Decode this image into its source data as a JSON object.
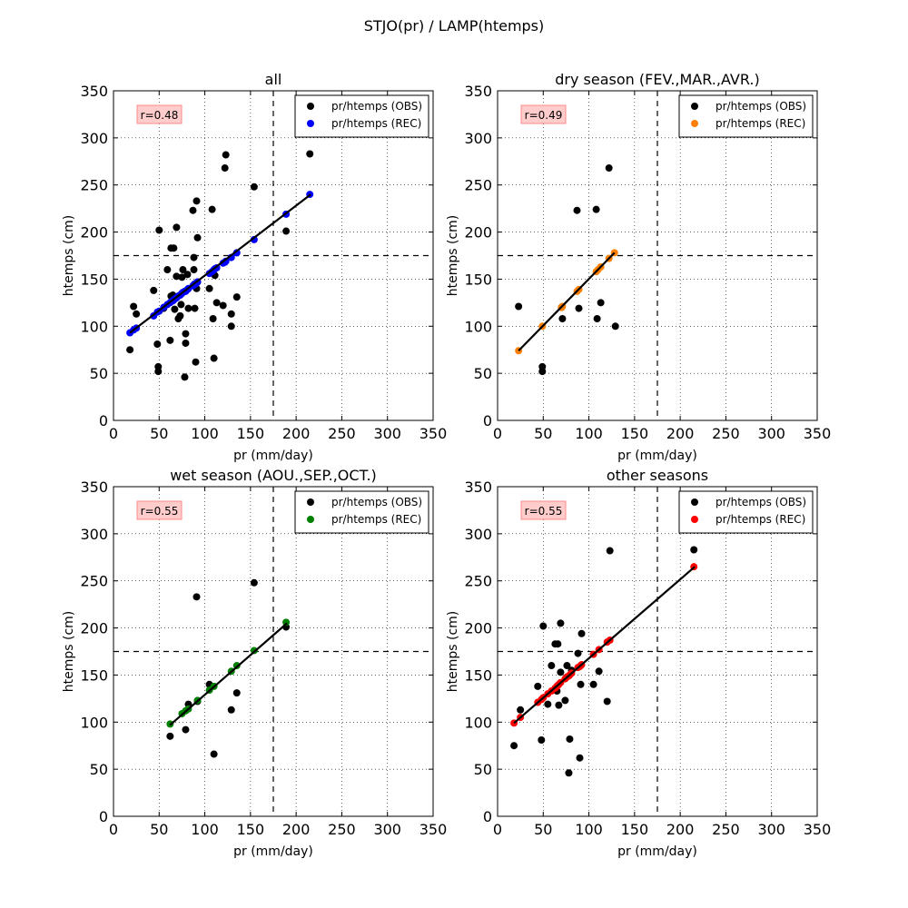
{
  "figure": {
    "suptitle": "STJO(pr) / LAMP(htemps)"
  },
  "chart_data": [
    {
      "type": "scatter",
      "title": "all",
      "xlabel": "pr (mm/day)",
      "ylabel": "htemps (cm)",
      "xlim": [
        0,
        350
      ],
      "ylim": [
        0,
        350
      ],
      "xticks": [
        0,
        50,
        100,
        150,
        200,
        250,
        300,
        350
      ],
      "yticks": [
        0,
        50,
        100,
        150,
        200,
        250,
        300,
        350
      ],
      "grid": true,
      "legend_position": "top-right",
      "annotation": "r=0.48",
      "thresholds": {
        "x": 175,
        "y": 175
      },
      "fit_line": {
        "x": [
          18,
          216
        ],
        "y": [
          93,
          240
        ]
      },
      "series": [
        {
          "name": "pr/htemps (OBS)",
          "color": "#000000",
          "points": [
            [
              18,
              75
            ],
            [
              22,
              121
            ],
            [
              25,
              113
            ],
            [
              44,
              138
            ],
            [
              48,
              81
            ],
            [
              49,
              57
            ],
            [
              49,
              52
            ],
            [
              50,
              202
            ],
            [
              55,
              119
            ],
            [
              59,
              160
            ],
            [
              62,
              85
            ],
            [
              63,
              183
            ],
            [
              63,
              132
            ],
            [
              65,
              133
            ],
            [
              66,
              183
            ],
            [
              67,
              118
            ],
            [
              69,
              153
            ],
            [
              69,
              205
            ],
            [
              71,
              108
            ],
            [
              73,
              111
            ],
            [
              74,
              123
            ],
            [
              75,
              152
            ],
            [
              76,
              160
            ],
            [
              78,
              46
            ],
            [
              79,
              92
            ],
            [
              79,
              82
            ],
            [
              81,
              155
            ],
            [
              82,
              119
            ],
            [
              87,
              223
            ],
            [
              88,
              160
            ],
            [
              88,
              173
            ],
            [
              89,
              119
            ],
            [
              90,
              62
            ],
            [
              91,
              233
            ],
            [
              91,
              140
            ],
            [
              92,
              194
            ],
            [
              92,
              147
            ],
            [
              105,
              140
            ],
            [
              108,
              224
            ],
            [
              109,
              108
            ],
            [
              110,
              66
            ],
            [
              111,
              154
            ],
            [
              113,
              125
            ],
            [
              120,
              122
            ],
            [
              122,
              268
            ],
            [
              123,
              282
            ],
            [
              129,
              113
            ],
            [
              129,
              100
            ],
            [
              135,
              131
            ],
            [
              154,
              248
            ],
            [
              189,
              201
            ],
            [
              215,
              283
            ]
          ]
        },
        {
          "name": "pr/htemps (REC)",
          "color": "#0000ff",
          "points": [
            [
              18,
              93
            ],
            [
              22,
              96
            ],
            [
              25,
              98
            ],
            [
              44,
              111
            ],
            [
              48,
              115
            ],
            [
              50,
              116
            ],
            [
              55,
              120
            ],
            [
              59,
              123
            ],
            [
              62,
              125
            ],
            [
              63,
              126
            ],
            [
              65,
              127
            ],
            [
              66,
              128
            ],
            [
              67,
              129
            ],
            [
              69,
              130
            ],
            [
              71,
              132
            ],
            [
              73,
              133
            ],
            [
              74,
              134
            ],
            [
              75,
              135
            ],
            [
              76,
              136
            ],
            [
              78,
              137
            ],
            [
              79,
              137
            ],
            [
              81,
              139
            ],
            [
              82,
              140
            ],
            [
              87,
              143
            ],
            [
              88,
              144
            ],
            [
              89,
              145
            ],
            [
              90,
              145
            ],
            [
              91,
              146
            ],
            [
              92,
              147
            ],
            [
              105,
              156
            ],
            [
              108,
              158
            ],
            [
              110,
              160
            ],
            [
              111,
              161
            ],
            [
              113,
              162
            ],
            [
              120,
              167
            ],
            [
              122,
              168
            ],
            [
              123,
              169
            ],
            [
              129,
              173
            ],
            [
              135,
              178
            ],
            [
              154,
              192
            ],
            [
              189,
              219
            ],
            [
              215,
              240
            ]
          ]
        }
      ]
    },
    {
      "type": "scatter",
      "title": "dry season (FEV.,MAR.,AVR.)",
      "xlabel": "pr (mm/day)",
      "ylabel": "htemps (cm)",
      "xlim": [
        0,
        350
      ],
      "ylim": [
        0,
        350
      ],
      "xticks": [
        0,
        50,
        100,
        150,
        200,
        250,
        300,
        350
      ],
      "yticks": [
        0,
        50,
        100,
        150,
        200,
        250,
        300,
        350
      ],
      "grid": true,
      "legend_position": "top-right",
      "annotation": "r=0.49",
      "thresholds": {
        "x": 175,
        "y": 175
      },
      "fit_line": {
        "x": [
          23,
          128
        ],
        "y": [
          74,
          178
        ]
      },
      "series": [
        {
          "name": "pr/htemps (OBS)",
          "color": "#000000",
          "points": [
            [
              23,
              121
            ],
            [
              49,
              57
            ],
            [
              49,
              52
            ],
            [
              70,
              120
            ],
            [
              71,
              108
            ],
            [
              87,
              223
            ],
            [
              89,
              119
            ],
            [
              108,
              224
            ],
            [
              109,
              108
            ],
            [
              113,
              125
            ],
            [
              122,
              268
            ],
            [
              129,
              100
            ]
          ]
        },
        {
          "name": "pr/htemps (REC)",
          "color": "#ff8000",
          "points": [
            [
              23,
              74
            ],
            [
              49,
              100
            ],
            [
              70,
              120
            ],
            [
              71,
              121
            ],
            [
              87,
              137
            ],
            [
              89,
              139
            ],
            [
              108,
              158
            ],
            [
              110,
              160
            ],
            [
              113,
              163
            ],
            [
              122,
              172
            ],
            [
              128,
              178
            ]
          ]
        }
      ]
    },
    {
      "type": "scatter",
      "title": "wet season (AOU.,SEP.,OCT.)",
      "xlabel": "pr (mm/day)",
      "ylabel": "htemps (cm)",
      "xlim": [
        0,
        350
      ],
      "ylim": [
        0,
        350
      ],
      "xticks": [
        0,
        50,
        100,
        150,
        200,
        250,
        300,
        350
      ],
      "yticks": [
        0,
        50,
        100,
        150,
        200,
        250,
        300,
        350
      ],
      "grid": true,
      "legend_position": "top-right",
      "annotation": "r=0.55",
      "thresholds": {
        "x": 175,
        "y": 175
      },
      "fit_line": {
        "x": [
          62,
          190
        ],
        "y": [
          97,
          205
        ]
      },
      "series": [
        {
          "name": "pr/htemps (OBS)",
          "color": "#000000",
          "points": [
            [
              62,
              85
            ],
            [
              79,
              92
            ],
            [
              82,
              119
            ],
            [
              91,
              233
            ],
            [
              92,
              122
            ],
            [
              105,
              140
            ],
            [
              110,
              66
            ],
            [
              129,
              113
            ],
            [
              135,
              131
            ],
            [
              154,
              248
            ],
            [
              189,
              201
            ]
          ]
        },
        {
          "name": "pr/htemps (REC)",
          "color": "#008000",
          "points": [
            [
              62,
              98
            ],
            [
              75,
              109
            ],
            [
              79,
              112
            ],
            [
              82,
              114
            ],
            [
              92,
              123
            ],
            [
              105,
              134
            ],
            [
              110,
              138
            ],
            [
              129,
              154
            ],
            [
              135,
              160
            ],
            [
              154,
              176
            ],
            [
              189,
              206
            ]
          ]
        }
      ]
    },
    {
      "type": "scatter",
      "title": "other seasons",
      "xlabel": "pr (mm/day)",
      "ylabel": "htemps (cm)",
      "xlim": [
        0,
        350
      ],
      "ylim": [
        0,
        350
      ],
      "xticks": [
        0,
        50,
        100,
        150,
        200,
        250,
        300,
        350
      ],
      "yticks": [
        0,
        50,
        100,
        150,
        200,
        250,
        300,
        350
      ],
      "grid": true,
      "legend_position": "top-right",
      "annotation": "r=0.55",
      "thresholds": {
        "x": 175,
        "y": 175
      },
      "fit_line": {
        "x": [
          18,
          216
        ],
        "y": [
          99,
          265
        ]
      },
      "series": [
        {
          "name": "pr/htemps (OBS)",
          "color": "#000000",
          "points": [
            [
              18,
              75
            ],
            [
              25,
              113
            ],
            [
              44,
              138
            ],
            [
              48,
              81
            ],
            [
              50,
              202
            ],
            [
              55,
              119
            ],
            [
              59,
              160
            ],
            [
              63,
              183
            ],
            [
              65,
              133
            ],
            [
              66,
              183
            ],
            [
              67,
              118
            ],
            [
              69,
              153
            ],
            [
              69,
              205
            ],
            [
              74,
              123
            ],
            [
              76,
              160
            ],
            [
              78,
              46
            ],
            [
              79,
              82
            ],
            [
              81,
              155
            ],
            [
              88,
              173
            ],
            [
              90,
              62
            ],
            [
              91,
              140
            ],
            [
              92,
              194
            ],
            [
              105,
              140
            ],
            [
              111,
              154
            ],
            [
              120,
              122
            ],
            [
              123,
              282
            ],
            [
              215,
              283
            ]
          ]
        },
        {
          "name": "pr/htemps (REC)",
          "color": "#ff0000",
          "points": [
            [
              18,
              99
            ],
            [
              25,
              105
            ],
            [
              44,
              121
            ],
            [
              48,
              124
            ],
            [
              50,
              126
            ],
            [
              55,
              130
            ],
            [
              59,
              133
            ],
            [
              63,
              136
            ],
            [
              65,
              138
            ],
            [
              66,
              139
            ],
            [
              67,
              140
            ],
            [
              69,
              142
            ],
            [
              74,
              146
            ],
            [
              76,
              148
            ],
            [
              78,
              149
            ],
            [
              79,
              150
            ],
            [
              81,
              152
            ],
            [
              88,
              158
            ],
            [
              90,
              159
            ],
            [
              91,
              160
            ],
            [
              92,
              161
            ],
            [
              105,
              172
            ],
            [
              111,
              177
            ],
            [
              120,
              185
            ],
            [
              123,
              187
            ],
            [
              215,
              265
            ]
          ]
        }
      ]
    }
  ]
}
